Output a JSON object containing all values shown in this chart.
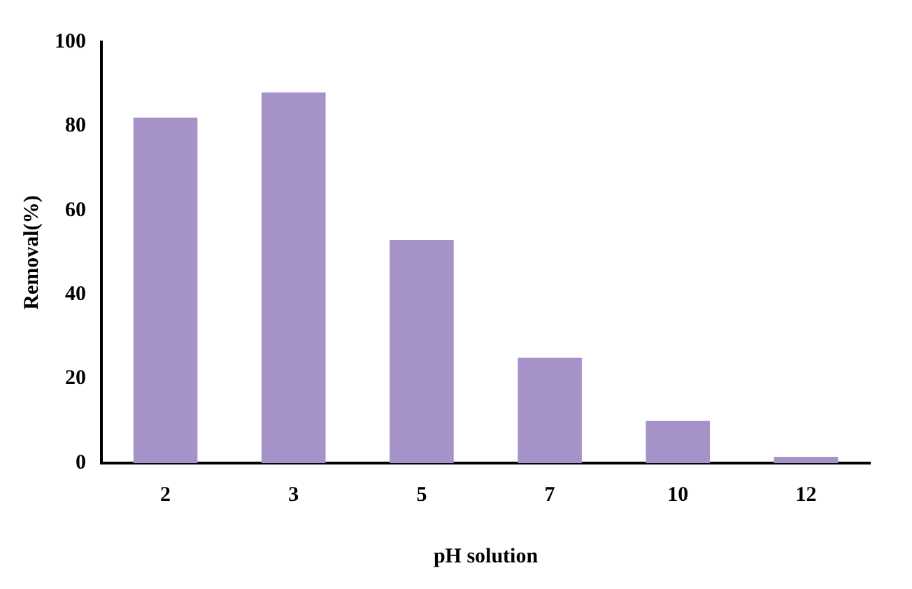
{
  "chart_data": {
    "type": "bar",
    "xlabel": "pH solution",
    "ylabel": "Removal(%)",
    "categories": [
      "2",
      "3",
      "5",
      "7",
      "10",
      "12"
    ],
    "values": [
      82,
      88,
      53,
      25,
      10,
      1.5
    ],
    "color": "#a592c8",
    "ylim": [
      0,
      100
    ],
    "yticks": [
      0,
      20,
      40,
      60,
      80,
      100
    ],
    "grid": false,
    "legend": false
  }
}
